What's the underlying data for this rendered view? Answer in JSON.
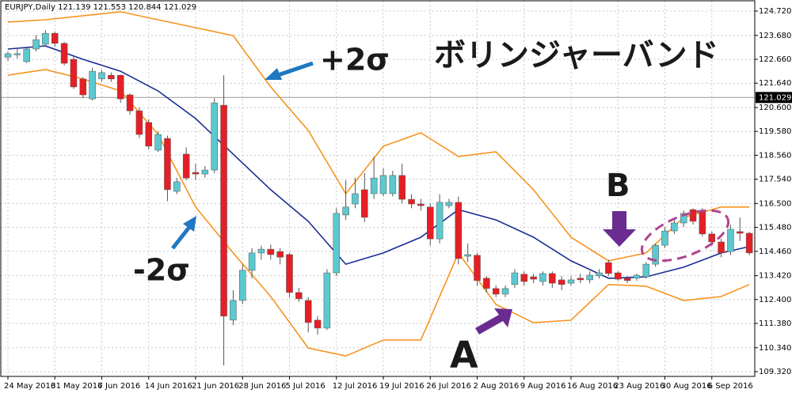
{
  "chart_data": {
    "type": "candlestick",
    "header": "EURJPY,Daily  121.139 121.553 120.844 121.029",
    "categories": [
      "24 May 2016",
      null,
      null,
      null,
      null,
      "31 May 2016",
      null,
      null,
      null,
      null,
      "7 Jun 2016",
      null,
      null,
      null,
      null,
      "14 Jun 2016",
      null,
      null,
      null,
      null,
      "21 Jun 2016",
      null,
      null,
      null,
      null,
      "28 Jun 2016",
      null,
      null,
      null,
      null,
      "5 Jul 2016",
      null,
      null,
      null,
      null,
      "12 Jul 2016",
      null,
      null,
      null,
      null,
      "19 Jul 2016",
      null,
      null,
      null,
      null,
      "26 Jul 2016",
      null,
      null,
      null,
      null,
      "2 Aug 2016",
      null,
      null,
      null,
      null,
      "9 Aug 2016",
      null,
      null,
      null,
      null,
      "16 Aug 2016",
      null,
      null,
      null,
      null,
      "23 Aug 2016",
      null,
      null,
      null,
      null,
      "30 Aug 2016",
      null,
      null,
      null,
      null,
      "6 Sep 2016",
      null,
      null,
      null,
      null
    ],
    "open": [
      122.75,
      122.85,
      122.56,
      123.1,
      123.3,
      123.77,
      123.34,
      122.66,
      121.82,
      120.97,
      121.82,
      121.98,
      121.98,
      121.14,
      120.46,
      119.96,
      118.78,
      119.28,
      117.02,
      118.61,
      117.83,
      117.76,
      117.93,
      120.7,
      111.52,
      112.36,
      113.65,
      114.39,
      114.55,
      114.45,
      114.32,
      112.7,
      112.36,
      111.52,
      111.18,
      113.54,
      116.01,
      116.48,
      117.09,
      116.92,
      116.92,
      116.92,
      117.7,
      116.68,
      116.48,
      116.35,
      114.99,
      116.41,
      116.55,
      114.25,
      114.29,
      113.31,
      112.87,
      112.63,
      113.04,
      113.48,
      113.37,
      113.17,
      113.51,
      113.24,
      113.1,
      113.31,
      113.24,
      113.41,
      113.98,
      113.54,
      113.31,
      113.31,
      113.37,
      113.91,
      114.72,
      115.33,
      115.67,
      116.24,
      116.14,
      115.2,
      114.86,
      114.45,
      115.3,
      115.23
    ],
    "high": [
      123.0,
      123.1,
      123.2,
      123.7,
      123.9,
      123.85,
      123.4,
      122.8,
      121.9,
      122.3,
      122.2,
      122.1,
      122.0,
      121.2,
      120.6,
      120.1,
      119.6,
      119.4,
      117.6,
      118.9,
      118.2,
      118.1,
      121.0,
      121.98,
      112.8,
      113.9,
      114.6,
      114.7,
      114.75,
      114.6,
      114.4,
      112.9,
      112.5,
      111.7,
      113.7,
      116.3,
      117.5,
      117.6,
      117.8,
      118.5,
      118.0,
      117.9,
      118.2,
      116.9,
      116.7,
      116.5,
      116.9,
      116.7,
      116.8,
      114.8,
      114.4,
      113.4,
      113.0,
      113.0,
      113.7,
      113.6,
      113.5,
      113.6,
      113.6,
      113.4,
      113.4,
      113.5,
      113.6,
      113.7,
      114.1,
      113.6,
      113.4,
      113.5,
      114.0,
      114.8,
      115.5,
      115.8,
      116.2,
      116.3,
      116.3,
      115.3,
      115.0,
      115.6,
      115.9,
      115.3
    ],
    "low": [
      122.6,
      122.7,
      122.5,
      123.0,
      123.2,
      123.2,
      122.4,
      121.4,
      121.0,
      120.9,
      121.7,
      121.7,
      120.8,
      120.3,
      119.3,
      118.8,
      118.7,
      116.6,
      116.9,
      117.5,
      117.5,
      117.6,
      117.8,
      109.59,
      111.3,
      112.2,
      113.3,
      114.1,
      114.1,
      113.9,
      112.5,
      112.3,
      111.0,
      110.9,
      111.1,
      113.4,
      115.8,
      116.3,
      115.7,
      116.7,
      116.8,
      116.8,
      116.5,
      116.3,
      116.2,
      114.7,
      114.8,
      116.3,
      113.9,
      114.0,
      113.0,
      112.7,
      112.5,
      112.5,
      112.9,
      113.0,
      113.1,
      113.0,
      112.9,
      112.8,
      113.0,
      113.1,
      113.1,
      113.3,
      113.4,
      113.2,
      113.1,
      113.2,
      113.3,
      113.8,
      114.6,
      115.2,
      115.5,
      115.6,
      115.1,
      114.7,
      114.2,
      114.3,
      114.9,
      114.3
    ],
    "close": [
      122.9,
      122.9,
      123.1,
      123.5,
      123.77,
      123.34,
      122.49,
      121.48,
      121.14,
      122.15,
      122.09,
      121.82,
      120.97,
      120.46,
      119.45,
      118.95,
      119.45,
      117.09,
      117.43,
      117.59,
      117.76,
      117.93,
      120.8,
      111.69,
      112.36,
      113.65,
      114.39,
      114.55,
      114.32,
      114.21,
      112.7,
      112.43,
      111.42,
      111.18,
      113.54,
      116.08,
      116.35,
      116.92,
      115.91,
      117.59,
      117.7,
      117.7,
      116.68,
      116.48,
      116.41,
      114.99,
      116.55,
      116.55,
      114.15,
      114.32,
      113.21,
      112.87,
      112.63,
      112.87,
      113.54,
      113.17,
      113.27,
      113.51,
      113.1,
      113.04,
      113.24,
      113.24,
      113.44,
      113.54,
      113.51,
      113.27,
      113.21,
      113.44,
      113.91,
      114.72,
      115.33,
      115.67,
      116.08,
      115.74,
      115.2,
      114.86,
      114.39,
      115.4,
      115.23,
      114.39
    ],
    "up_color": "#5cc8cf",
    "down_color": "#e61e25",
    "bands": {
      "x": [
        0,
        4,
        8,
        12,
        16,
        20,
        24,
        28,
        32,
        36,
        40,
        44,
        48,
        52,
        56,
        60,
        64,
        68,
        72,
        76,
        79
      ],
      "upper": [
        124.25,
        124.35,
        124.52,
        124.69,
        124.35,
        124.01,
        123.67,
        121.48,
        119.62,
        116.92,
        118.95,
        119.52,
        118.51,
        118.71,
        117.09,
        115.06,
        114.05,
        114.39,
        115.91,
        116.35,
        116.35
      ],
      "middle": [
        123.1,
        123.23,
        122.66,
        122.15,
        121.31,
        120.13,
        118.61,
        117.09,
        115.74,
        113.91,
        114.39,
        115.06,
        116.24,
        115.8,
        115.06,
        114.05,
        113.31,
        113.37,
        113.78,
        114.39,
        114.66
      ],
      "lower": [
        121.98,
        122.22,
        121.82,
        121.31,
        119.45,
        116.35,
        114.39,
        112.53,
        110.33,
        109.99,
        110.67,
        110.67,
        114.39,
        112.19,
        111.41,
        111.52,
        113.04,
        112.97,
        112.36,
        112.53,
        113.04
      ],
      "band_color": "#f7931e",
      "middle_color": "#1b2c93"
    },
    "last_price": {
      "value": 121.029,
      "label": "121.029"
    },
    "ylim": [
      109.32,
      124.72
    ],
    "yticks": [
      {
        "value": 124.72,
        "label": "124.720"
      },
      {
        "value": 123.68,
        "label": "123.680"
      },
      {
        "value": 122.66,
        "label": "122.660"
      },
      {
        "value": 121.64,
        "label": "121.640"
      },
      {
        "value": 120.6,
        "label": "120.600"
      },
      {
        "value": 119.58,
        "label": "119.580"
      },
      {
        "value": 118.56,
        "label": "118.560"
      },
      {
        "value": 117.54,
        "label": "117.540"
      },
      {
        "value": 116.5,
        "label": "116.500"
      },
      {
        "value": 115.48,
        "label": "115.480"
      },
      {
        "value": 114.46,
        "label": "114.460"
      },
      {
        "value": 113.42,
        "label": "113.420"
      },
      {
        "value": 112.4,
        "label": "112.400"
      },
      {
        "value": 111.38,
        "label": "111.380"
      },
      {
        "value": 110.34,
        "label": "110.340"
      },
      {
        "value": 109.32,
        "label": "109.320"
      }
    ],
    "grid": true,
    "annotations": [
      "+2σ",
      "-2σ",
      "A",
      "B",
      "ボリンジャーバンド"
    ]
  }
}
